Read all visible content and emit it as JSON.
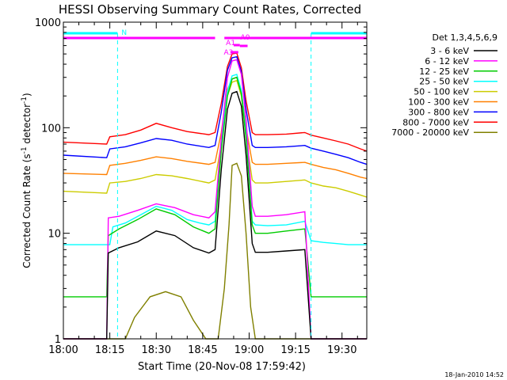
{
  "chart_data": {
    "type": "line",
    "title": "HESSI Observing Summary Count Rates, Corrected",
    "xlabel": "Start Time (20-Nov-08 17:59:42)",
    "ylabel": "Corrected Count Rate (s⁻¹ detector⁻¹)",
    "ylabel_main": "Corrected Count Rate (s",
    "ylabel_mid": " detector",
    "ylabel_end": ")",
    "ylabel_sup": "-1",
    "y_scale": "log",
    "ylim": [
      1,
      1000
    ],
    "xlim": [
      0,
      98
    ],
    "x_ticks": [
      {
        "t": 0,
        "label": "18:00"
      },
      {
        "t": 15,
        "label": "18:15"
      },
      {
        "t": 30,
        "label": "18:30"
      },
      {
        "t": 45,
        "label": "18:45"
      },
      {
        "t": 60,
        "label": "19:00"
      },
      {
        "t": 75,
        "label": "19:15"
      },
      {
        "t": 90,
        "label": "19:30"
      }
    ],
    "y_ticks": [
      {
        "v": 1,
        "label": "1"
      },
      {
        "v": 10,
        "label": "10"
      },
      {
        "v": 100,
        "label": "100"
      },
      {
        "v": 1000,
        "label": "1000"
      }
    ],
    "legend_title": "Det 1,3,4,5,6,9",
    "legend_position": "right",
    "timestamp": "18-Jan-2010 14:52",
    "series": [
      {
        "name": "3 - 6 keV",
        "color": "#000000",
        "x": [
          0,
          14,
          14.5,
          18,
          24,
          30,
          36,
          42,
          47,
          49,
          51,
          53,
          54.5,
          56,
          57.5,
          59,
          61,
          62,
          66,
          72,
          78,
          80,
          83,
          87,
          90,
          95,
          98
        ],
        "y": [
          1,
          1,
          6.5,
          7.3,
          8.3,
          10.5,
          9.5,
          7.3,
          6.5,
          7,
          40,
          150,
          212,
          220,
          160,
          55,
          8,
          6.6,
          6.6,
          6.8,
          7,
          1,
          1,
          1,
          1,
          1,
          1
        ]
      },
      {
        "name": "6 - 12 keV",
        "color": "#ff00ff",
        "x": [
          0,
          14,
          14.5,
          18,
          24,
          30,
          36,
          42,
          47,
          49,
          51,
          53,
          54.5,
          56,
          57.5,
          59,
          61,
          62,
          66,
          72,
          78,
          80,
          83,
          87,
          90,
          95,
          98
        ],
        "y": [
          1,
          1,
          14,
          14.5,
          16.5,
          19,
          17.5,
          15,
          14,
          16,
          80,
          300,
          430,
          440,
          320,
          120,
          18,
          14.5,
          14.5,
          15,
          16,
          1,
          1,
          1,
          1,
          1,
          1
        ]
      },
      {
        "name": "12 - 25 keV",
        "color": "#00cc00",
        "x": [
          0,
          14,
          14.5,
          18,
          24,
          30,
          36,
          42,
          47,
          49,
          51,
          53,
          54.5,
          56,
          57.5,
          59,
          61,
          62,
          66,
          72,
          78,
          80,
          83,
          87,
          90,
          95,
          98
        ],
        "y": [
          2.5,
          2.5,
          9.5,
          11,
          13.5,
          17,
          15,
          11.5,
          10,
          11,
          60,
          200,
          290,
          300,
          210,
          80,
          12,
          10,
          10,
          10.5,
          11,
          2.5,
          2.5,
          2.5,
          2.5,
          2.5,
          2.5
        ]
      },
      {
        "name": "25 - 50 keV",
        "color": "#00ffff",
        "x": [
          0,
          15,
          16,
          20,
          25,
          30,
          35,
          40,
          44,
          47,
          49,
          51,
          53,
          54.5,
          56,
          57.5,
          59,
          61,
          62,
          66,
          72,
          78,
          80,
          84,
          88,
          92,
          96,
          98
        ],
        "y": [
          7.8,
          7.8,
          11.5,
          12.5,
          15,
          18,
          16.5,
          13.5,
          12.5,
          12,
          13,
          70,
          220,
          310,
          320,
          225,
          90,
          13,
          12,
          11.8,
          12,
          13,
          8.5,
          8.2,
          8,
          7.8,
          7.8,
          7.8
        ]
      },
      {
        "name": "50 - 100 keV",
        "color": "#cccc00",
        "x": [
          0,
          14,
          15,
          20,
          25,
          30,
          35,
          40,
          47,
          49,
          51,
          53,
          54.5,
          56,
          57.5,
          59,
          61,
          62,
          66,
          72,
          78,
          80,
          84,
          88,
          92,
          96,
          98
        ],
        "y": [
          25,
          24,
          30,
          31,
          33,
          36,
          35,
          33,
          30,
          32,
          70,
          200,
          270,
          280,
          200,
          80,
          32,
          30,
          30,
          31,
          32,
          30,
          28,
          27,
          25,
          23,
          22
        ]
      },
      {
        "name": "100 - 300 keV",
        "color": "#ff8000",
        "x": [
          0,
          14,
          15,
          20,
          25,
          30,
          35,
          40,
          47,
          49,
          51,
          53,
          54.5,
          56,
          57.5,
          59,
          61,
          62,
          66,
          72,
          78,
          80,
          84,
          88,
          92,
          96,
          98
        ],
        "y": [
          37,
          36,
          44,
          46,
          49,
          53,
          51,
          48,
          45,
          47,
          90,
          230,
          290,
          300,
          220,
          100,
          47,
          45,
          45,
          46,
          47,
          45,
          42,
          40,
          37,
          34,
          33
        ]
      },
      {
        "name": "300 - 800 keV",
        "color": "#0000ff",
        "x": [
          0,
          14,
          15,
          20,
          25,
          30,
          35,
          40,
          47,
          49,
          51,
          53,
          54.5,
          56,
          57.5,
          59,
          61,
          62,
          66,
          72,
          78,
          80,
          84,
          88,
          92,
          96,
          98
        ],
        "y": [
          55,
          52,
          63,
          66,
          72,
          79,
          76,
          70,
          65,
          68,
          140,
          350,
          460,
          470,
          340,
          150,
          68,
          65,
          65,
          66,
          68,
          64,
          60,
          56,
          52,
          47,
          45
        ]
      },
      {
        "name": "800 - 7000 keV",
        "color": "#ff0000",
        "x": [
          0,
          14,
          15,
          20,
          25,
          30,
          35,
          40,
          47,
          49,
          51,
          53,
          54.5,
          56,
          57.5,
          59,
          61,
          62,
          66,
          72,
          78,
          80,
          84,
          88,
          92,
          96,
          98
        ],
        "y": [
          73,
          70,
          82,
          86,
          95,
          110,
          100,
          92,
          86,
          90,
          170,
          380,
          500,
          510,
          370,
          180,
          90,
          86,
          86,
          87,
          90,
          85,
          80,
          75,
          70,
          63,
          60
        ]
      },
      {
        "name": "7000 - 20000 keV",
        "color": "#808000",
        "x": [
          0,
          20,
          23,
          28,
          33,
          38,
          42,
          46,
          50,
          52,
          53.5,
          54.5,
          56,
          57.5,
          59,
          60.5,
          62,
          80,
          98
        ],
        "y": [
          1,
          1,
          1.6,
          2.5,
          2.8,
          2.5,
          1.5,
          1,
          1,
          3,
          12,
          44,
          46,
          35,
          10,
          2,
          1,
          1,
          1
        ]
      }
    ],
    "annotations": {
      "n_label": "N",
      "a1_label": "A1",
      "a0_label": "A0",
      "a3_label": "A3",
      "night_intervals": [
        [
          0,
          17.5
        ],
        [
          80,
          98
        ]
      ],
      "saa_intervals": [
        [
          0,
          49
        ],
        [
          52,
          98
        ]
      ]
    }
  }
}
